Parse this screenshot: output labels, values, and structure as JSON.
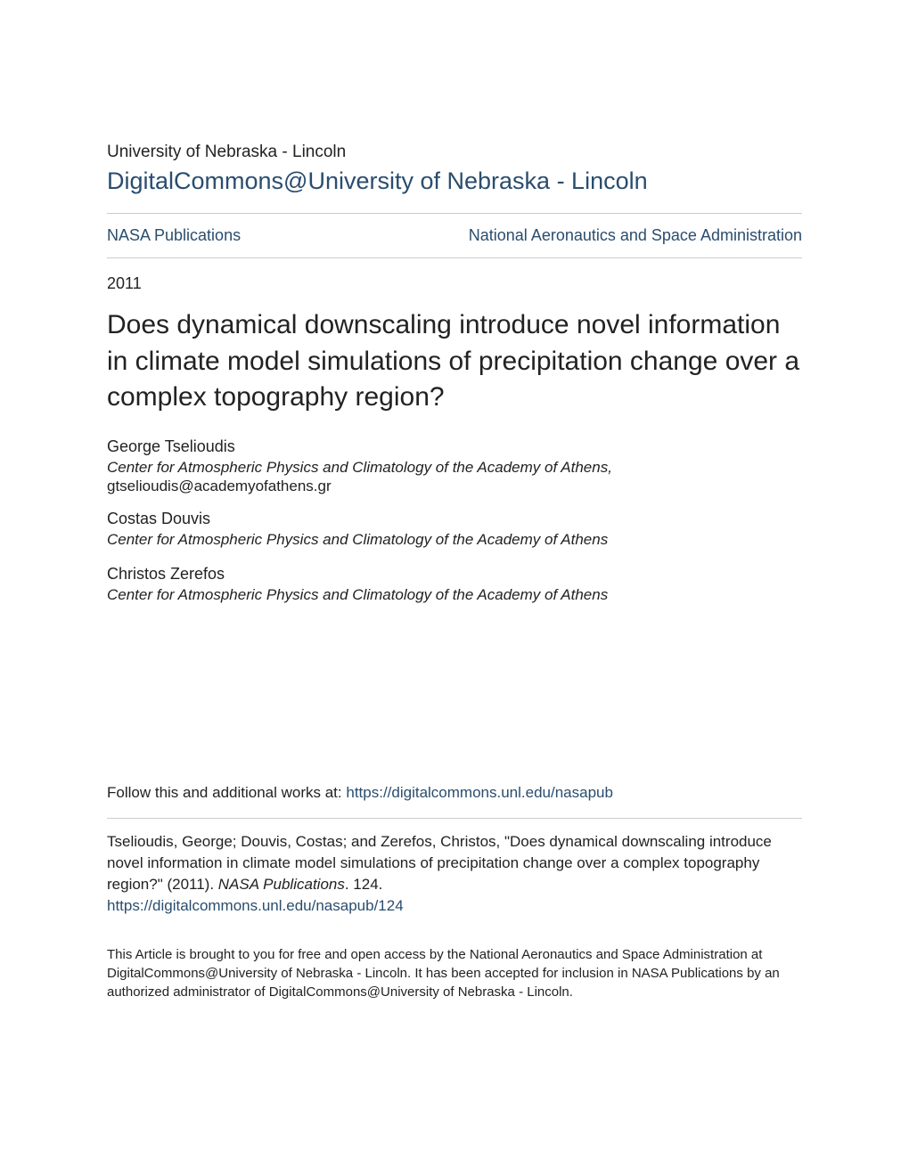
{
  "colors": {
    "link_color": "#2a4d6e",
    "text_color": "#222222",
    "divider_color": "#cccccc",
    "background_color": "#ffffff"
  },
  "typography": {
    "body_font": "Arial, Helvetica, sans-serif",
    "institution_fontsize": 19,
    "site_title_fontsize": 27,
    "links_fontsize": 18,
    "year_fontsize": 18,
    "paper_title_fontsize": 30,
    "author_name_fontsize": 18,
    "author_affil_fontsize": 17,
    "follow_fontsize": 17,
    "citation_fontsize": 17,
    "disclaimer_fontsize": 15
  },
  "header": {
    "institution": "University of Nebraska - Lincoln",
    "site_title": "DigitalCommons@University of Nebraska - Lincoln"
  },
  "breadcrumb": {
    "left": "NASA Publications",
    "right": "National Aeronautics and Space Administration"
  },
  "meta": {
    "year": "2011"
  },
  "paper": {
    "title": "Does dynamical downscaling introduce novel information in climate model simulations of precipitation change over a complex topography region?"
  },
  "authors": [
    {
      "name": "George Tselioudis",
      "affiliation": "Center for Atmospheric Physics and Climatology of the Academy of Athens",
      "email": "gtselioudis@academyofathens.gr"
    },
    {
      "name": "Costas Douvis",
      "affiliation": "Center for Atmospheric Physics and Climatology of the Academy of Athens",
      "email": ""
    },
    {
      "name": "Christos Zerefos",
      "affiliation": "Center for Atmospheric Physics and Climatology of the Academy of Athens",
      "email": ""
    }
  ],
  "follow": {
    "prefix": "Follow this and additional works at: ",
    "url_text": "https://digitalcommons.unl.edu/nasapub"
  },
  "citation": {
    "text_part1": "Tselioudis, George; Douvis, Costas; and Zerefos, Christos, \"Does dynamical downscaling introduce novel information in climate model simulations of precipitation change over a complex topography region?\" (2011). ",
    "series_name": "NASA Publications",
    "text_part2": ". 124.",
    "permalink_text": "https://digitalcommons.unl.edu/nasapub/124"
  },
  "disclaimer": "This Article is brought to you for free and open access by the National Aeronautics and Space Administration at DigitalCommons@University of Nebraska - Lincoln. It has been accepted for inclusion in NASA Publications by an authorized administrator of DigitalCommons@University of Nebraska - Lincoln."
}
